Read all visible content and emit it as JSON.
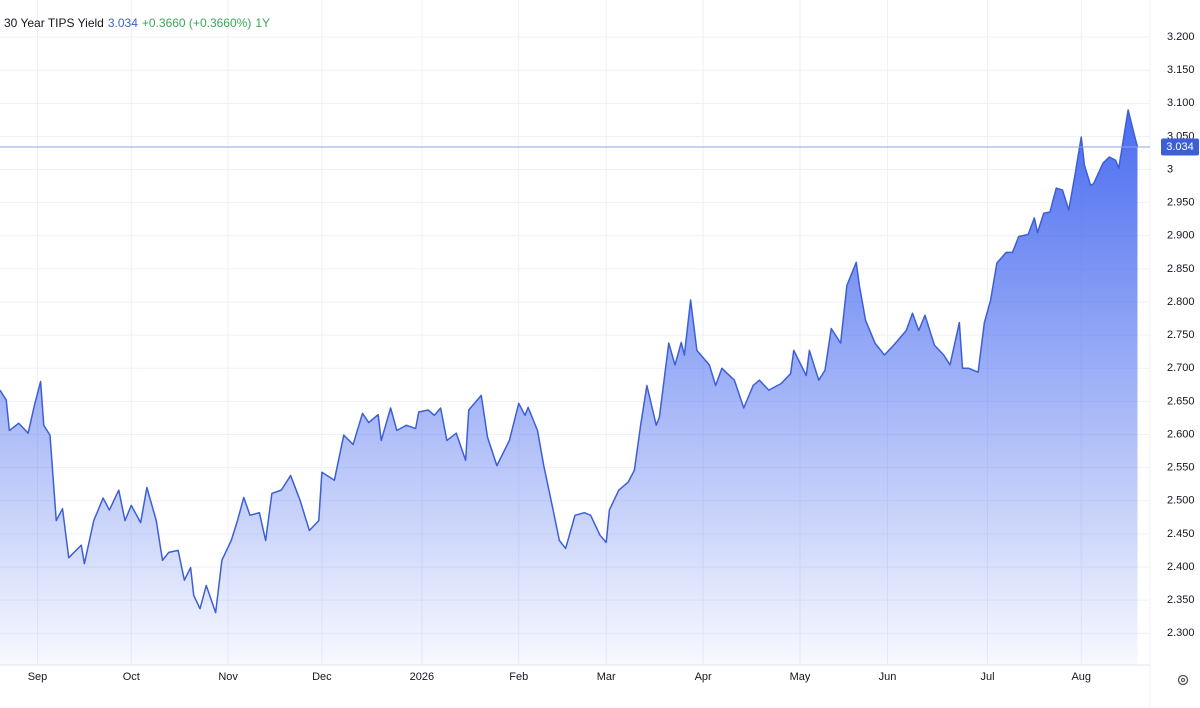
{
  "chart_data": {
    "type": "area",
    "title": "30 Year TIPS Yield",
    "change": "+0.3660 (+0.3660%)",
    "range": "1Y",
    "color": "#4a6cf0",
    "x": [
      0,
      2,
      3,
      6,
      9,
      11,
      13,
      14,
      16,
      18,
      20,
      22,
      26,
      27,
      30,
      33,
      35,
      38,
      40,
      42,
      45,
      47,
      50,
      52,
      54,
      57,
      59,
      61,
      62,
      64,
      66,
      69,
      71,
      74,
      76,
      78,
      80,
      83,
      85,
      87,
      90,
      93,
      96,
      99,
      102,
      103,
      107,
      110,
      113,
      116,
      118,
      121,
      122,
      125,
      127,
      130,
      133,
      134,
      137,
      139,
      141,
      143,
      146,
      149,
      150,
      154,
      156,
      159,
      163,
      166,
      168,
      169,
      172,
      174,
      177,
      179,
      181,
      184,
      187,
      189,
      192,
      194,
      195,
      198,
      201,
      203,
      205,
      207,
      210,
      211,
      214,
      216,
      218,
      219,
      221,
      223,
      227,
      229,
      231,
      235,
      238,
      241,
      243,
      246,
      250,
      253,
      254,
      258,
      259,
      262,
      264,
      266,
      269,
      271,
      274,
      275,
      277,
      280,
      283,
      286,
      290,
      292,
      294,
      296,
      299,
      302,
      304,
      307,
      308,
      310,
      313,
      315,
      317,
      319,
      322,
      324,
      326,
      329,
      331,
      332,
      334,
      336,
      338,
      340,
      342,
      344,
      346,
      347,
      349,
      350,
      353,
      355,
      357,
      358,
      361,
      363,
      364
    ],
    "values": [
      2.667,
      2.652,
      2.606,
      2.617,
      2.602,
      2.644,
      2.68,
      2.614,
      2.599,
      2.47,
      2.488,
      2.414,
      2.433,
      2.405,
      2.47,
      2.504,
      2.486,
      2.516,
      2.47,
      2.493,
      2.467,
      2.52,
      2.47,
      2.41,
      2.422,
      2.425,
      2.38,
      2.399,
      2.357,
      2.337,
      2.372,
      2.331,
      2.41,
      2.44,
      2.47,
      2.505,
      2.478,
      2.482,
      2.44,
      2.511,
      2.516,
      2.538,
      2.501,
      2.455,
      2.47,
      2.543,
      2.531,
      2.599,
      2.585,
      2.632,
      2.618,
      2.63,
      2.591,
      2.64,
      2.606,
      2.614,
      2.609,
      2.634,
      2.637,
      2.629,
      2.64,
      2.591,
      2.602,
      2.561,
      2.637,
      2.659,
      2.596,
      2.553,
      2.591,
      2.647,
      2.629,
      2.641,
      2.606,
      2.553,
      2.486,
      2.44,
      2.428,
      2.478,
      2.482,
      2.478,
      2.448,
      2.437,
      2.486,
      2.516,
      2.528,
      2.546,
      2.614,
      2.674,
      2.614,
      2.626,
      2.738,
      2.705,
      2.739,
      2.72,
      2.803,
      2.727,
      2.705,
      2.674,
      2.7,
      2.682,
      2.64,
      2.674,
      2.682,
      2.667,
      2.677,
      2.692,
      2.727,
      2.689,
      2.727,
      2.682,
      2.697,
      2.76,
      2.738,
      2.825,
      2.86,
      2.825,
      2.772,
      2.738,
      2.72,
      2.735,
      2.757,
      2.783,
      2.757,
      2.78,
      2.735,
      2.72,
      2.705,
      2.769,
      2.7,
      2.7,
      2.694,
      2.769,
      2.803,
      2.859,
      2.875,
      2.875,
      2.899,
      2.902,
      2.927,
      2.905,
      2.934,
      2.936,
      2.972,
      2.969,
      2.939,
      2.992,
      3.049,
      3.007,
      2.976,
      2.979,
      3.01,
      3.019,
      3.014,
      3.002,
      3.09,
      3.052,
      3.034
    ],
    "xlim": [
      0,
      368
    ],
    "xticks": [
      {
        "value": 12,
        "label": "Sep"
      },
      {
        "value": 42,
        "label": "Oct"
      },
      {
        "value": 73,
        "label": "Nov"
      },
      {
        "value": 103,
        "label": "Dec"
      },
      {
        "value": 135,
        "label": "2026"
      },
      {
        "value": 166,
        "label": "Feb"
      },
      {
        "value": 194,
        "label": "Mar"
      },
      {
        "value": 225,
        "label": "Apr"
      },
      {
        "value": 256,
        "label": "May"
      },
      {
        "value": 284,
        "label": "Jun"
      },
      {
        "value": 316,
        "label": "Jul"
      },
      {
        "value": 346,
        "label": "Aug"
      }
    ],
    "ylim": [
      2.252,
      3.256
    ],
    "yticks": [
      {
        "value": 3.2,
        "label": "3.200"
      },
      {
        "value": 3.15,
        "label": "3.150"
      },
      {
        "value": 3.1,
        "label": "3.100"
      },
      {
        "value": 3.05,
        "label": "3.050"
      },
      3,
      {
        "value": 2.95,
        "label": "2.950"
      },
      {
        "value": 2.9,
        "label": "2.900"
      },
      {
        "value": 2.85,
        "label": "2.850"
      },
      {
        "value": 2.8,
        "label": "2.800"
      },
      {
        "value": 2.75,
        "label": "2.750"
      },
      {
        "value": 2.7,
        "label": "2.700"
      },
      {
        "value": 2.65,
        "label": "2.650"
      },
      {
        "value": 2.6,
        "label": "2.600"
      },
      {
        "value": 2.55,
        "label": "2.550"
      },
      {
        "value": 2.5,
        "label": "2.500"
      },
      {
        "value": 2.45,
        "label": "2.450"
      },
      {
        "value": 2.4,
        "label": "2.400"
      },
      {
        "value": 2.35,
        "label": "2.350"
      },
      {
        "value": 2.3,
        "label": "2.300"
      }
    ],
    "grid": true
  }
}
